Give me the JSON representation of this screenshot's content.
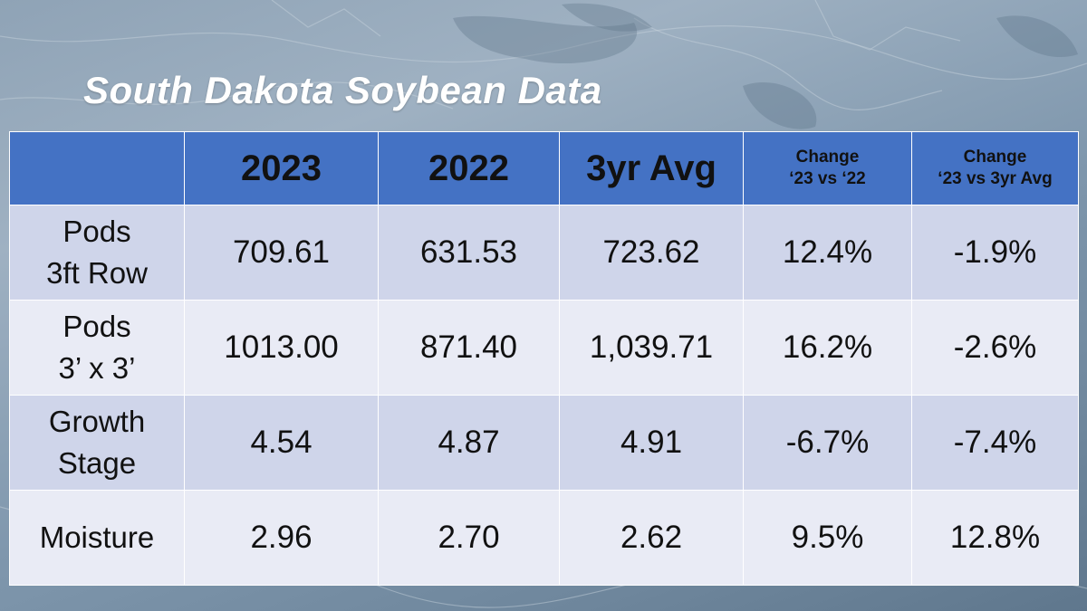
{
  "title": "South Dakota Soybean Data",
  "header": {
    "blank": "",
    "col_2023": "2023",
    "col_2022": "2022",
    "col_3yr": "3yr Avg",
    "change_22": {
      "line1": "Change",
      "line2": "‘23 vs ‘22"
    },
    "change_3yr": {
      "line1": "Change",
      "line2": "‘23 vs 3yr Avg"
    }
  },
  "rows": [
    {
      "label": [
        "Pods",
        "3ft Row"
      ],
      "v2023": "709.61",
      "v2022": "631.53",
      "avg3": "723.62",
      "chg22": "12.4%",
      "chg3": "-1.9%"
    },
    {
      "label": [
        "Pods",
        "3’ x 3’"
      ],
      "v2023": "1013.00",
      "v2022": "871.40",
      "avg3": "1,039.71",
      "chg22": "16.2%",
      "chg3": "-2.6%"
    },
    {
      "label": [
        "Growth",
        "Stage"
      ],
      "v2023": "4.54",
      "v2022": "4.87",
      "avg3": "4.91",
      "chg22": "-6.7%",
      "chg3": "-7.4%"
    },
    {
      "label": [
        "Moisture"
      ],
      "v2023": "2.96",
      "v2022": "2.70",
      "avg3": "2.62",
      "chg22": "9.5%",
      "chg3": "12.8%"
    }
  ],
  "colors": {
    "header_bg": "#4472c4",
    "row_odd": "#cfd5ea",
    "row_even": "#e9ebf5"
  }
}
